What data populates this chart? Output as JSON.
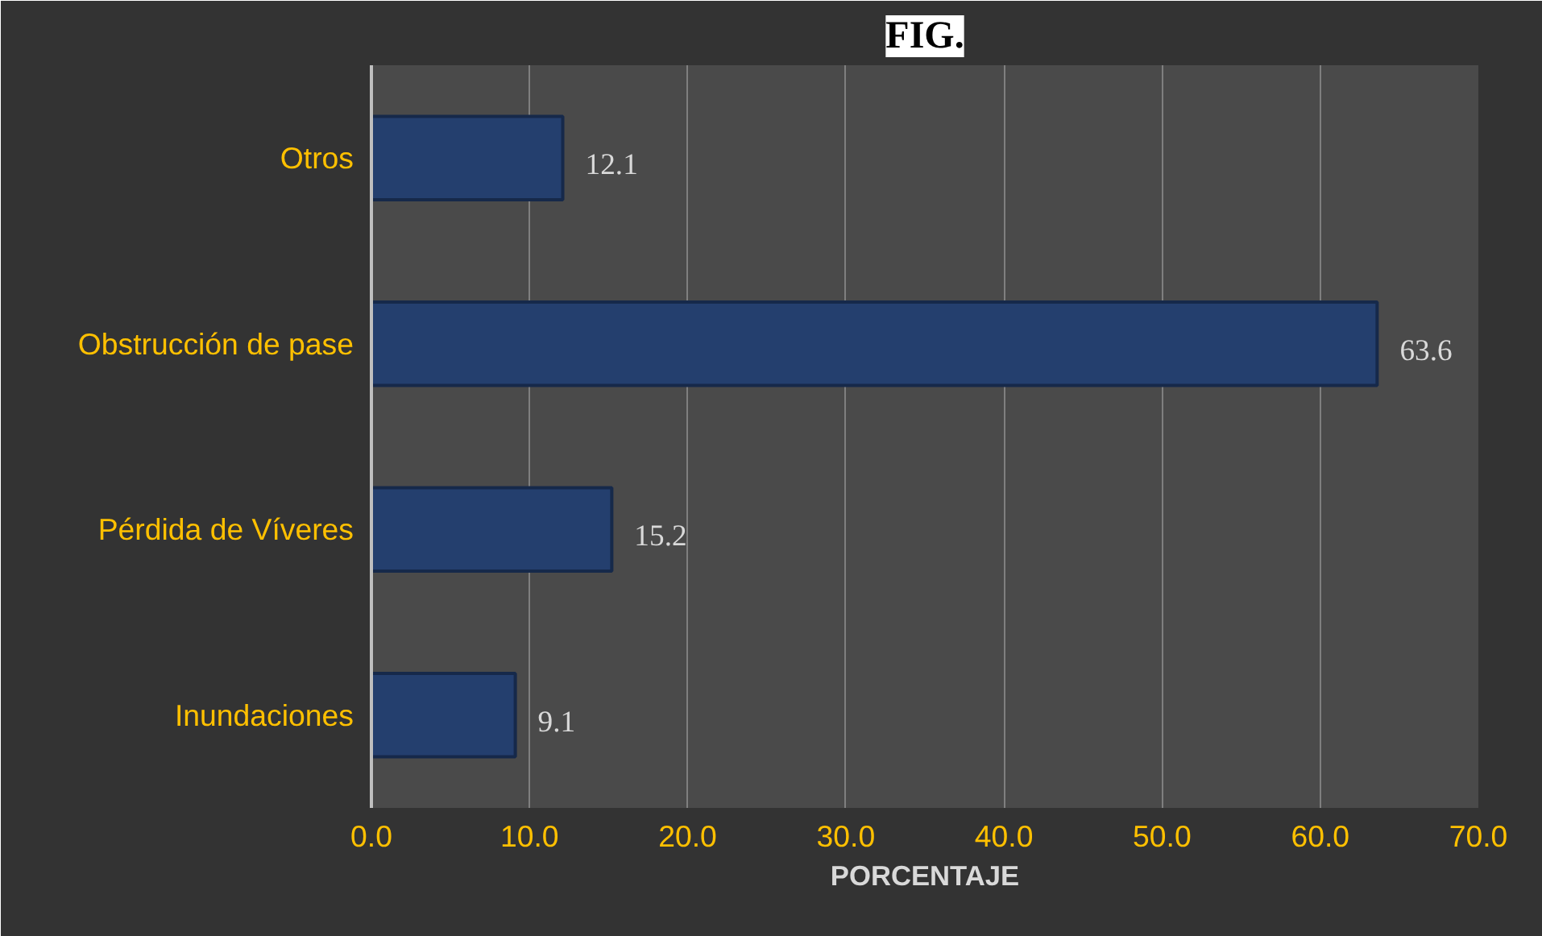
{
  "chart_data": {
    "type": "bar",
    "orientation": "horizontal",
    "title": "FIG.",
    "xlabel": "PORCENTAJE",
    "categories": [
      "Otros",
      "Obstrucción de pase",
      "Pérdida de Víveres",
      "Inundaciones"
    ],
    "values": [
      12.1,
      63.6,
      15.2,
      9.1
    ],
    "color": "#243f6e",
    "data_labels": true,
    "xlim": [
      0,
      70
    ],
    "xticks": [
      {
        "value": 0,
        "label": "0.0"
      },
      {
        "value": 10,
        "label": "10.0"
      },
      {
        "value": 20,
        "label": "20.0"
      },
      {
        "value": 30,
        "label": "30.0"
      },
      {
        "value": 40,
        "label": "40.0"
      },
      {
        "value": 50,
        "label": "50.0"
      },
      {
        "value": 60,
        "label": "60.0"
      },
      {
        "value": 70,
        "label": "70.0"
      }
    ],
    "grid": "x"
  }
}
